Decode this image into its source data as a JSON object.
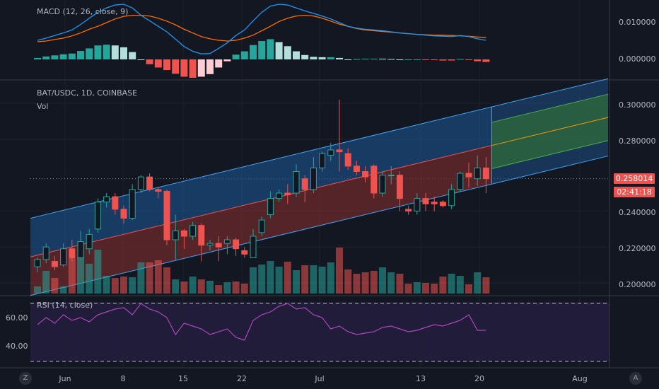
{
  "macd": {
    "title": "MACD (12, 26, close, 9)",
    "ticks": [
      "0.010000",
      "0.000000"
    ]
  },
  "main": {
    "symbol": "BAT/USDC, 1D, COINBASE",
    "vol_label": "Vol",
    "ticks": [
      "0.300000",
      "0.280000",
      "0.240000",
      "0.220000",
      "0.200000"
    ],
    "last_price": "0.258014",
    "countdown": "02:41:18"
  },
  "rsi": {
    "title": "RSI (14, close)",
    "ticks": [
      "60.00",
      "40.00"
    ]
  },
  "xaxis": {
    "labels": [
      "Jun",
      "8",
      "15",
      "22",
      "Jul",
      "13",
      "20",
      "Aug"
    ]
  },
  "buttons": {
    "left": "Z",
    "right": "A"
  },
  "colors": {
    "up": "#26a69a",
    "down": "#ef5350",
    "macd": "#2196f3",
    "signal": "#ff6d00",
    "rsi": "#ab47bc"
  },
  "chart_data": {
    "type": "candlestick",
    "pair": "BAT/USDC",
    "interval": "1D",
    "x_dates": [
      "May 29",
      "May 30",
      "May 31",
      "Jun 1",
      "Jun 2",
      "Jun 3",
      "Jun 4",
      "Jun 5",
      "Jun 6",
      "Jun 7",
      "Jun 8",
      "Jun 9",
      "Jun 10",
      "Jun 11",
      "Jun 12",
      "Jun 13",
      "Jun 14",
      "Jun 15",
      "Jun 16",
      "Jun 17",
      "Jun 18",
      "Jun 19",
      "Jun 20",
      "Jun 21",
      "Jun 22",
      "Jun 23",
      "Jun 24",
      "Jun 25",
      "Jun 26",
      "Jun 27",
      "Jun 28",
      "Jun 29",
      "Jun 30",
      "Jul 1",
      "Jul 2",
      "Jul 3",
      "Jul 4",
      "Jul 5",
      "Jul 6",
      "Jul 7",
      "Jul 8",
      "Jul 9",
      "Jul 10",
      "Jul 11",
      "Jul 12",
      "Jul 13",
      "Jul 14",
      "Jul 15",
      "Jul 16",
      "Jul 17",
      "Jul 18",
      "Jul 19",
      "Jul 20"
    ],
    "candles": [
      [
        0.209,
        0.213,
        0.206,
        0.214
      ],
      [
        0.213,
        0.22,
        0.211,
        0.222
      ],
      [
        0.212,
        0.209,
        0.207,
        0.215
      ],
      [
        0.21,
        0.219,
        0.209,
        0.222
      ],
      [
        0.219,
        0.214,
        0.212,
        0.224
      ],
      [
        0.214,
        0.223,
        0.213,
        0.229
      ],
      [
        0.219,
        0.227,
        0.216,
        0.23
      ],
      [
        0.23,
        0.245,
        0.228,
        0.247
      ],
      [
        0.245,
        0.248,
        0.242,
        0.25
      ],
      [
        0.248,
        0.241,
        0.238,
        0.25
      ],
      [
        0.241,
        0.236,
        0.233,
        0.243
      ],
      [
        0.236,
        0.252,
        0.235,
        0.255
      ],
      [
        0.252,
        0.259,
        0.25,
        0.26
      ],
      [
        0.259,
        0.252,
        0.251,
        0.261
      ],
      [
        0.252,
        0.251,
        0.247,
        0.253
      ],
      [
        0.251,
        0.224,
        0.221,
        0.252
      ],
      [
        0.224,
        0.229,
        0.213,
        0.238
      ],
      [
        0.229,
        0.226,
        0.219,
        0.23
      ],
      [
        0.226,
        0.232,
        0.224,
        0.234
      ],
      [
        0.232,
        0.221,
        0.212,
        0.233
      ],
      [
        0.221,
        0.222,
        0.218,
        0.224
      ],
      [
        0.222,
        0.22,
        0.212,
        0.226
      ],
      [
        0.222,
        0.224,
        0.216,
        0.226
      ],
      [
        0.224,
        0.219,
        0.215,
        0.225
      ],
      [
        0.218,
        0.216,
        0.214,
        0.22
      ],
      [
        0.214,
        0.226,
        0.214,
        0.23
      ],
      [
        0.228,
        0.235,
        0.226,
        0.237
      ],
      [
        0.238,
        0.247,
        0.236,
        0.251
      ],
      [
        0.247,
        0.25,
        0.245,
        0.252
      ],
      [
        0.25,
        0.249,
        0.244,
        0.255
      ],
      [
        0.25,
        0.262,
        0.248,
        0.266
      ],
      [
        0.258,
        0.252,
        0.245,
        0.26
      ],
      [
        0.252,
        0.264,
        0.25,
        0.27
      ],
      [
        0.264,
        0.272,
        0.262,
        0.273
      ],
      [
        0.271,
        0.274,
        0.268,
        0.278
      ],
      [
        0.274,
        0.273,
        0.262,
        0.302
      ],
      [
        0.272,
        0.265,
        0.263,
        0.275
      ],
      [
        0.265,
        0.262,
        0.26,
        0.268
      ],
      [
        0.262,
        0.259,
        0.256,
        0.265
      ],
      [
        0.265,
        0.25,
        0.247,
        0.266
      ],
      [
        0.25,
        0.26,
        0.248,
        0.262
      ],
      [
        0.26,
        0.26,
        0.255,
        0.265
      ],
      [
        0.26,
        0.247,
        0.24,
        0.262
      ],
      [
        0.241,
        0.24,
        0.238,
        0.243
      ],
      [
        0.24,
        0.247,
        0.238,
        0.25
      ],
      [
        0.247,
        0.244,
        0.24,
        0.25
      ],
      [
        0.245,
        0.244,
        0.24,
        0.248
      ],
      [
        0.245,
        0.243,
        0.242,
        0.246
      ],
      [
        0.243,
        0.252,
        0.241,
        0.255
      ],
      [
        0.252,
        0.261,
        0.251,
        0.262
      ],
      [
        0.261,
        0.259,
        0.253,
        0.267
      ],
      [
        0.258,
        0.264,
        0.254,
        0.271
      ],
      [
        0.264,
        0.258,
        0.25,
        0.27
      ]
    ],
    "volume": [
      0.1,
      0.32,
      0.22,
      0.1,
      0.5,
      0.52,
      0.42,
      0.62,
      0.25,
      0.22,
      0.24,
      0.23,
      0.44,
      0.44,
      0.47,
      0.37,
      0.2,
      0.17,
      0.24,
      0.2,
      0.18,
      0.12,
      0.16,
      0.17,
      0.14,
      0.37,
      0.41,
      0.46,
      0.38,
      0.45,
      0.33,
      0.4,
      0.4,
      0.38,
      0.44,
      0.65,
      0.34,
      0.28,
      0.3,
      0.32,
      0.37,
      0.3,
      0.28,
      0.14,
      0.16,
      0.15,
      0.14,
      0.24,
      0.28,
      0.25,
      0.13,
      0.3,
      0.23
    ],
    "macd_line": [
      0.0052,
      0.0058,
      0.0065,
      0.0072,
      0.008,
      0.0095,
      0.0112,
      0.0128,
      0.014,
      0.0148,
      0.015,
      0.014,
      0.012,
      0.0105,
      0.009,
      0.0075,
      0.0055,
      0.0035,
      0.0022,
      0.0015,
      0.0016,
      0.003,
      0.0045,
      0.0065,
      0.008,
      0.0105,
      0.0128,
      0.0145,
      0.015,
      0.0148,
      0.014,
      0.0132,
      0.0125,
      0.0118,
      0.011,
      0.01,
      0.009,
      0.0085,
      0.0082,
      0.008,
      0.0078,
      0.0075,
      0.0072,
      0.007,
      0.0068,
      0.0066,
      0.0064,
      0.0063,
      0.0062,
      0.0065,
      0.0062,
      0.0056,
      0.0052
    ],
    "signal_line": [
      0.0048,
      0.005,
      0.0054,
      0.0058,
      0.0064,
      0.0072,
      0.0082,
      0.009,
      0.01,
      0.011,
      0.0117,
      0.012,
      0.012,
      0.0118,
      0.0112,
      0.0104,
      0.0094,
      0.0082,
      0.0072,
      0.0062,
      0.0056,
      0.0052,
      0.005,
      0.0052,
      0.0058,
      0.0066,
      0.0078,
      0.009,
      0.0103,
      0.0112,
      0.0118,
      0.012,
      0.0118,
      0.0112,
      0.0104,
      0.0096,
      0.009,
      0.0084,
      0.008,
      0.0078,
      0.0076,
      0.0074,
      0.0072,
      0.007,
      0.0068,
      0.0067,
      0.0066,
      0.0066,
      0.0065,
      0.0064,
      0.0063,
      0.0061,
      0.0059
    ],
    "rsi": [
      55,
      60,
      56,
      62,
      58,
      60,
      57,
      62,
      64,
      66,
      67,
      62,
      70,
      66,
      64,
      60,
      48,
      56,
      54,
      52,
      48,
      50,
      52,
      46,
      44,
      58,
      62,
      64,
      68,
      70,
      66,
      67,
      62,
      60,
      52,
      54,
      50,
      48,
      49,
      50,
      53,
      54,
      52,
      50,
      51,
      53,
      55,
      54,
      56,
      58,
      62,
      51,
      51
    ],
    "channel": {
      "upper_start": 0.236,
      "upper_end": 0.298,
      "lower_start": 0.193,
      "lower_end": 0.255,
      "projection_end": "Aug 10"
    }
  }
}
